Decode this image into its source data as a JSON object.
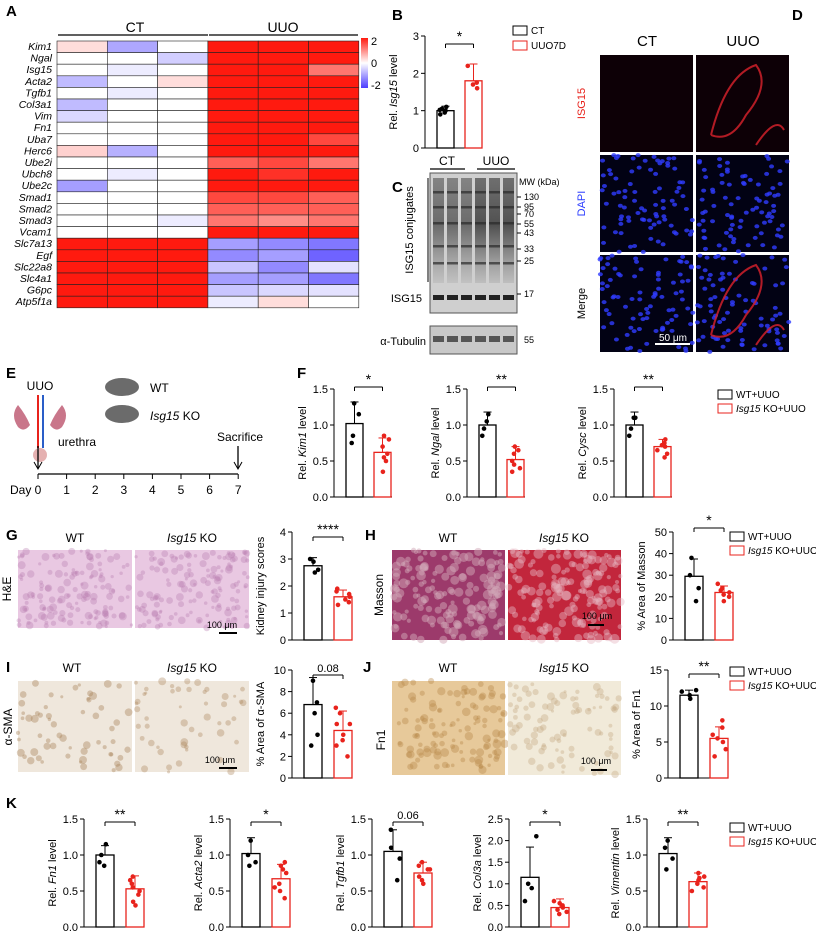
{
  "colors": {
    "red": "#e8231c",
    "blue": "#4a3cf0",
    "black": "#111111",
    "tissue_he": "#e9c8e2",
    "tissue_masson_wt": "#9c3a6b",
    "tissue_masson_ko": "#c2263c",
    "tissue_ihc": "#efe7dc",
    "fluor_bg": "#0a0004"
  },
  "panels": {
    "A": {
      "letter": "A",
      "group_ct": "CT",
      "group_uuo": "UUO",
      "genes": [
        "Kim1",
        "Ngal",
        "Isg15",
        "Acta2",
        "Tgfb1",
        "Col3a1",
        "Vim",
        "Fn1",
        "Uba7",
        "Herc6",
        "Ube2i",
        "Ubch8",
        "Ube2c",
        "Smad1",
        "Smad2",
        "Smad3",
        "Vcam1",
        "Slc7a13",
        "Egf",
        "Slc22a8",
        "Slc4a1",
        "G6pc",
        "Atp5f1a"
      ],
      "legend_ticks": [
        "2",
        "0",
        "-2"
      ],
      "heat": [
        [
          0.3,
          -0.9,
          0.0,
          2,
          2,
          2
        ],
        [
          0.0,
          0.0,
          -0.5,
          2,
          2,
          2
        ],
        [
          0.0,
          -0.2,
          0.0,
          2,
          2,
          1.2
        ],
        [
          -0.7,
          0.0,
          0.3,
          2,
          2,
          2
        ],
        [
          0.0,
          -0.2,
          0.0,
          2,
          2,
          2
        ],
        [
          -0.7,
          0.0,
          0.0,
          2,
          2,
          2
        ],
        [
          -0.4,
          0.0,
          0.0,
          2,
          2,
          2
        ],
        [
          0.0,
          0.0,
          0.0,
          2,
          2,
          2
        ],
        [
          0.0,
          0.0,
          0.0,
          2,
          2,
          1.6
        ],
        [
          0.4,
          -0.8,
          0.0,
          2,
          2,
          2
        ],
        [
          0.0,
          0.0,
          0.0,
          1.4,
          1.6,
          1.2
        ],
        [
          0.0,
          -0.2,
          0.0,
          2,
          1.8,
          2
        ],
        [
          -1.0,
          0.0,
          0.0,
          2,
          2,
          2
        ],
        [
          0.0,
          0.0,
          0.0,
          1.6,
          1.6,
          1.4
        ],
        [
          0.0,
          0.0,
          0.0,
          1.4,
          1.4,
          1.4
        ],
        [
          0.0,
          0.0,
          -0.2,
          1.2,
          1.0,
          1.2
        ],
        [
          0.0,
          0.0,
          0.0,
          2,
          2,
          2
        ],
        [
          2,
          2,
          2,
          -1.0,
          -1.2,
          -1.4
        ],
        [
          2,
          2,
          2,
          -1.2,
          -1.0,
          -1.6
        ],
        [
          2,
          2,
          2,
          -0.6,
          -1.2,
          -0.3
        ],
        [
          2,
          2,
          2,
          -1.0,
          -1.0,
          -1.4
        ],
        [
          2,
          2,
          2,
          -0.6,
          -0.4,
          -0.3
        ],
        [
          2,
          2,
          2,
          -0.2,
          0.3,
          0.0
        ]
      ]
    },
    "B": {
      "letter": "B",
      "ylabel_pre": "Rel. ",
      "ylabel_it": "Isg15",
      "ylabel_post": " level",
      "ticks": [
        "0",
        "1",
        "2",
        "3"
      ],
      "legend": [
        "CT",
        "UUO7D"
      ],
      "sig": "*"
    },
    "C": {
      "letter": "C",
      "ct": "CT",
      "uuo": "UUO",
      "mw_header": "MW (kDa)",
      "mw": [
        "130",
        "95",
        "70",
        "55",
        "43",
        "33",
        "25",
        "17"
      ],
      "label_conj": "ISG15 conjugates",
      "label_isg": "ISG15",
      "label_tub": "α-Tubulin",
      "mw_tub": "55"
    },
    "D": {
      "letter": "D",
      "ct": "CT",
      "uuo": "UUO",
      "rows": [
        "ISG15",
        "DAPI",
        "Merge"
      ],
      "scale": "50 μm"
    },
    "E": {
      "letter": "E",
      "uuo": "UUO",
      "wt": "WT",
      "ko_it": "Isg15",
      "ko": " KO",
      "urethra": "urethra",
      "sacrifice": "Sacrifice",
      "day": "Day",
      "days": [
        "0",
        "1",
        "2",
        "3",
        "4",
        "5",
        "6",
        "7"
      ]
    },
    "F": {
      "letter": "F",
      "plots": [
        {
          "ylabel_it": "Kim1",
          "ticks": [
            "0.0",
            "0.5",
            "1.0",
            "1.5"
          ],
          "sig": "*"
        },
        {
          "ylabel_it": "Ngal",
          "ticks": [
            "0.0",
            "0.5",
            "1.0",
            "1.5"
          ],
          "sig": "**"
        },
        {
          "ylabel_it": "Cysc",
          "ticks": [
            "0.0",
            "0.5",
            "1.0",
            "1.5"
          ],
          "sig": "**"
        }
      ],
      "legend_wt": "WT+UUO",
      "legend_ko_it": "Isg15",
      "legend_ko": " KO+UUO"
    },
    "G": {
      "letter": "G",
      "wt": "WT",
      "ko_it": "Isg15",
      "ko": " KO",
      "side": "H&E",
      "scale": "100 μm",
      "ylabel": "Kidney injury scores",
      "ticks": [
        "0",
        "1",
        "2",
        "3",
        "4"
      ],
      "sig": "****"
    },
    "H": {
      "letter": "H",
      "wt": "WT",
      "ko_it": "Isg15",
      "ko": " KO",
      "side": "Masson",
      "scale": "100 μm",
      "ylabel": "% Area of Masson",
      "ticks": [
        "0",
        "10",
        "20",
        "30",
        "40",
        "50"
      ],
      "sig": "*",
      "legend_wt": "WT+UUO",
      "legend_ko_it": "Isg15",
      "legend_ko": " KO+UUO"
    },
    "I": {
      "letter": "I",
      "wt": "WT",
      "ko_it": "Isg15",
      "ko": " KO",
      "side": "α-SMA",
      "scale": "100 μm",
      "ylabel": "% Area of α-SMA",
      "ticks": [
        "0",
        "2",
        "4",
        "6",
        "8",
        "10"
      ],
      "sig": "0.08"
    },
    "J": {
      "letter": "J",
      "wt": "WT",
      "ko_it": "Isg15",
      "ko": " KO",
      "side": "Fn1",
      "scale": "100 μm",
      "ylabel": "% Area of Fn1",
      "ticks": [
        "0",
        "5",
        "10",
        "15"
      ],
      "sig": "**",
      "legend_wt": "WT+UUO",
      "legend_ko_it": "Isg15",
      "legend_ko": " KO+UUO"
    },
    "K": {
      "letter": "K",
      "plots": [
        {
          "ylabel_it": "Fn1",
          "ticks": [
            "0.0",
            "0.5",
            "1.0",
            "1.5"
          ],
          "sig": "**"
        },
        {
          "ylabel_it": "Acta2",
          "ticks": [
            "0.0",
            "0.5",
            "1.0",
            "1.5"
          ],
          "sig": "*"
        },
        {
          "ylabel_it": "Tgfb1",
          "ticks": [
            "0.0",
            "0.5",
            "1.0",
            "1.5"
          ],
          "sig": "0.06"
        },
        {
          "ylabel_it": "Col3a",
          "ticks": [
            "0.0",
            "0.5",
            "1.0",
            "1.5",
            "2.0",
            "2.5"
          ],
          "sig": "*"
        },
        {
          "ylabel_it": "Vimentin",
          "ticks": [
            "0.0",
            "0.5",
            "1.0",
            "1.5"
          ],
          "sig": "**"
        }
      ],
      "legend_wt": "WT+UUO",
      "legend_ko_it": "Isg15",
      "legend_ko": " KO+UUO"
    }
  },
  "chart_data": [
    {
      "type": "bar",
      "panel": "B",
      "categories": [
        "CT",
        "UUO7D"
      ],
      "values": [
        1.0,
        1.8
      ],
      "errors": [
        0.12,
        0.45
      ],
      "points": [
        [
          1.1,
          0.9,
          1.05,
          0.95,
          1.0,
          1.02
        ],
        [
          2.2,
          1.6,
          1.7,
          1.75
        ]
      ],
      "ylim": [
        0,
        3
      ]
    },
    {
      "type": "bar",
      "panel": "F-Kim1",
      "categories": [
        "WT+UUO",
        "Isg15 KO+UUO"
      ],
      "values": [
        1.02,
        0.62
      ],
      "errors": [
        0.3,
        0.2
      ],
      "points": [
        [
          1.3,
          0.85,
          0.75,
          1.15
        ],
        [
          0.8,
          0.5,
          0.7,
          0.6,
          0.35,
          0.85,
          0.55
        ]
      ],
      "ylim": [
        0,
        1.5
      ]
    },
    {
      "type": "bar",
      "panel": "F-Ngal",
      "categories": [
        "WT+UUO",
        "Isg15 KO+UUO"
      ],
      "values": [
        1.0,
        0.52
      ],
      "errors": [
        0.18,
        0.18
      ],
      "points": [
        [
          1.15,
          0.85,
          0.95,
          1.05
        ],
        [
          0.6,
          0.45,
          0.35,
          0.7,
          0.5,
          0.4,
          0.65
        ]
      ],
      "ylim": [
        0,
        1.5
      ]
    },
    {
      "type": "bar",
      "panel": "F-Cysc",
      "categories": [
        "WT+UUO",
        "Isg15 KO+UUO"
      ],
      "values": [
        1.0,
        0.7
      ],
      "errors": [
        0.18,
        0.1
      ],
      "points": [
        [
          1.1,
          0.85,
          0.95,
          1.1
        ],
        [
          0.75,
          0.6,
          0.8,
          0.65,
          0.7,
          0.55,
          0.72
        ]
      ],
      "ylim": [
        0,
        1.5
      ]
    },
    {
      "type": "bar",
      "panel": "G",
      "categories": [
        "WT",
        "Isg15 KO"
      ],
      "values": [
        2.75,
        1.6
      ],
      "errors": [
        0.3,
        0.25
      ],
      "points": [
        [
          3.0,
          2.6,
          2.5,
          2.9
        ],
        [
          1.4,
          1.8,
          1.6,
          1.7,
          1.3,
          1.9,
          1.5
        ]
      ],
      "ylim": [
        0,
        4
      ]
    },
    {
      "type": "bar",
      "panel": "H",
      "categories": [
        "WT",
        "Isg15 KO"
      ],
      "values": [
        29.5,
        22.0
      ],
      "errors": [
        8,
        3
      ],
      "points": [
        [
          38,
          24,
          18,
          30
        ],
        [
          23,
          20,
          26,
          18,
          22,
          24,
          21
        ]
      ],
      "ylim": [
        0,
        50
      ]
    },
    {
      "type": "bar",
      "panel": "I",
      "categories": [
        "WT",
        "Isg15 KO"
      ],
      "values": [
        6.8,
        4.4
      ],
      "errors": [
        2.5,
        1.8
      ],
      "points": [
        [
          9,
          4,
          7,
          3,
          6
        ],
        [
          6,
          3,
          5,
          2,
          4,
          6.5,
          3.5,
          5
        ]
      ],
      "ylim": [
        0,
        10
      ]
    },
    {
      "type": "bar",
      "panel": "J",
      "categories": [
        "WT",
        "Isg15 KO"
      ],
      "values": [
        11.5,
        5.5
      ],
      "errors": [
        0.7,
        1.6
      ],
      "points": [
        [
          12,
          11,
          11.5,
          12.2
        ],
        [
          7,
          4,
          8,
          3,
          6,
          5,
          5.5
        ]
      ],
      "ylim": [
        0,
        15
      ]
    },
    {
      "type": "bar",
      "panel": "K-Fn1",
      "categories": [
        "WT+UUO",
        "Isg15 KO+UUO"
      ],
      "values": [
        1.0,
        0.53
      ],
      "errors": [
        0.13,
        0.18
      ],
      "points": [
        [
          1.15,
          0.9,
          1.0,
          0.85
        ],
        [
          0.7,
          0.3,
          0.6,
          0.5,
          0.35,
          0.65,
          0.45,
          0.55
        ]
      ],
      "ylim": [
        0,
        1.5
      ]
    },
    {
      "type": "bar",
      "panel": "K-Acta2",
      "categories": [
        "WT+UUO",
        "Isg15 KO+UUO"
      ],
      "values": [
        1.02,
        0.67
      ],
      "errors": [
        0.22,
        0.2
      ],
      "points": [
        [
          1.2,
          0.85,
          1.0,
          0.9
        ],
        [
          0.9,
          0.5,
          0.8,
          0.6,
          0.4,
          0.75,
          0.55,
          0.85
        ]
      ],
      "ylim": [
        0,
        1.5
      ]
    },
    {
      "type": "bar",
      "panel": "K-Tgfb1",
      "categories": [
        "WT+UUO",
        "Isg15 KO+UUO"
      ],
      "values": [
        1.05,
        0.75
      ],
      "errors": [
        0.3,
        0.15
      ],
      "points": [
        [
          1.35,
          0.65,
          1.1,
          0.95
        ],
        [
          0.9,
          0.6,
          0.8,
          0.7,
          0.85,
          0.65,
          0.8
        ]
      ],
      "ylim": [
        0,
        1.5
      ]
    },
    {
      "type": "bar",
      "panel": "K-Col3a",
      "categories": [
        "WT+UUO",
        "Isg15 KO+UUO"
      ],
      "values": [
        1.15,
        0.45
      ],
      "errors": [
        0.7,
        0.2
      ],
      "points": [
        [
          2.1,
          0.6,
          0.9,
          1.0
        ],
        [
          0.5,
          0.3,
          0.6,
          0.35,
          0.4,
          0.55,
          0.45
        ]
      ],
      "ylim": [
        0,
        2.5
      ]
    },
    {
      "type": "bar",
      "panel": "K-Vimentin",
      "categories": [
        "WT+UUO",
        "Isg15 KO+UUO"
      ],
      "values": [
        1.02,
        0.63
      ],
      "errors": [
        0.22,
        0.12
      ],
      "points": [
        [
          1.2,
          0.8,
          1.1,
          0.95
        ],
        [
          0.7,
          0.55,
          0.65,
          0.6,
          0.75,
          0.5,
          0.68
        ]
      ],
      "ylim": [
        0,
        1.5
      ]
    }
  ]
}
